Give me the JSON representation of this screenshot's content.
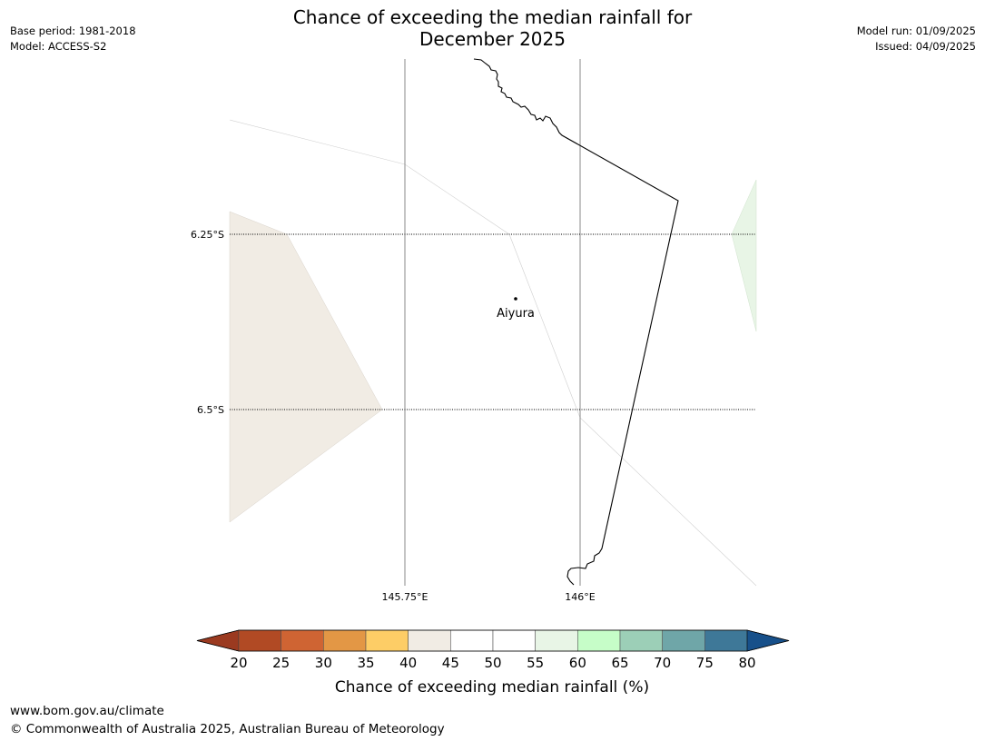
{
  "title": {
    "line1": "Chance of exceeding the median rainfall for",
    "line2": "December 2025"
  },
  "meta": {
    "base_period": "Base period: 1981-2018",
    "model": "Model: ACCESS-S2",
    "model_run": "Model run: 01/09/2025",
    "issued": "Issued: 04/09/2025"
  },
  "map": {
    "lat_labels": [
      "6.25°S",
      "6.5°S"
    ],
    "lon_labels": [
      "145.75°E",
      "146°E"
    ],
    "place": "Aiyura",
    "fill_colors": {
      "40-45": "#f1ece4",
      "55-60": "#e8f5e6"
    }
  },
  "colorbar": {
    "label": "Chance of exceeding median rainfall (%)",
    "ticks": [
      "20",
      "25",
      "30",
      "35",
      "40",
      "45",
      "50",
      "55",
      "60",
      "65",
      "70",
      "75",
      "80"
    ],
    "under_color": "#9b3a20",
    "over_color": "#17508a",
    "colors": [
      "#b14a24",
      "#cf6433",
      "#e39745",
      "#fdcd66",
      "#f1ece4",
      "#ffffff",
      "#ffffff",
      "#e8f5e6",
      "#c6fdc8",
      "#9ccfb7",
      "#6fa6a8",
      "#3e7898"
    ]
  },
  "footer": {
    "url": "www.bom.gov.au/climate",
    "copyright": "© Commonwealth of Australia 2025, Australian Bureau of Meteorology"
  }
}
